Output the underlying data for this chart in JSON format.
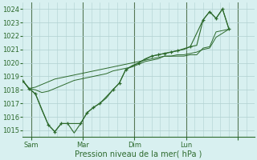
{
  "background_color": "#cce8e8",
  "plot_bg_color": "#d8f0f0",
  "grid_color": "#b0d0d0",
  "line_color": "#2d6a2d",
  "xlabel": "Pression niveau de la mer( hPa )",
  "ylim": [
    1014.5,
    1024.5
  ],
  "yticks": [
    1015,
    1016,
    1017,
    1018,
    1019,
    1020,
    1021,
    1022,
    1023,
    1024
  ],
  "xlim": [
    0,
    216
  ],
  "x_day_ticks": [
    8,
    56,
    104,
    152,
    200
  ],
  "x_day_labels": [
    "Sam",
    "Mar",
    "Dim",
    "Lun",
    ""
  ],
  "series1_x": [
    0,
    6,
    12,
    18,
    24,
    30,
    36,
    42,
    48,
    54,
    60,
    66,
    72,
    78,
    84,
    90,
    96,
    102,
    108,
    114,
    120,
    126,
    132,
    138,
    144,
    150,
    156,
    162,
    168,
    174,
    180,
    186,
    192
  ],
  "series1_y": [
    1018.7,
    1018.1,
    1017.7,
    1016.5,
    1015.4,
    1014.9,
    1015.5,
    1015.5,
    1014.8,
    1015.5,
    1016.3,
    1016.7,
    1017.0,
    1017.4,
    1018.0,
    1018.5,
    1019.5,
    1019.8,
    1020.0,
    1020.3,
    1020.5,
    1020.6,
    1020.7,
    1020.8,
    1020.9,
    1021.0,
    1021.2,
    1021.3,
    1023.2,
    1023.8,
    1023.3,
    1024.0,
    1022.5
  ],
  "series2_x": [
    0,
    6,
    12,
    18,
    24,
    30,
    36,
    42,
    48,
    54,
    60,
    66,
    72,
    78,
    84,
    90,
    96,
    102,
    108,
    114,
    120,
    126,
    132,
    138,
    144,
    150,
    156,
    162,
    168,
    174,
    180,
    186,
    192
  ],
  "series2_y": [
    1018.7,
    1018.1,
    1018.2,
    1018.4,
    1018.6,
    1018.8,
    1018.9,
    1019.0,
    1019.1,
    1019.2,
    1019.3,
    1019.4,
    1019.5,
    1019.6,
    1019.7,
    1019.8,
    1019.9,
    1020.0,
    1020.1,
    1020.2,
    1020.3,
    1020.4,
    1020.5,
    1020.5,
    1020.5,
    1020.5,
    1020.6,
    1020.6,
    1021.1,
    1021.2,
    1022.3,
    1022.4,
    1022.5
  ],
  "series3_x": [
    0,
    6,
    12,
    18,
    24,
    30,
    36,
    42,
    48,
    54,
    60,
    66,
    72,
    78,
    84,
    90,
    96,
    102,
    108,
    114,
    120,
    126,
    132,
    138,
    144,
    150,
    156,
    162,
    168,
    174,
    180,
    186,
    192
  ],
  "series3_y": [
    1018.7,
    1018.1,
    1018.0,
    1017.8,
    1017.9,
    1018.1,
    1018.3,
    1018.5,
    1018.7,
    1018.8,
    1018.9,
    1019.0,
    1019.1,
    1019.2,
    1019.4,
    1019.5,
    1019.6,
    1019.7,
    1019.9,
    1020.1,
    1020.2,
    1020.3,
    1020.5,
    1020.5,
    1020.6,
    1020.6,
    1020.7,
    1020.8,
    1021.0,
    1021.1,
    1021.9,
    1022.2,
    1022.5
  ],
  "markers_x": [
    0,
    6,
    12,
    24,
    30,
    36,
    42,
    54,
    60,
    66,
    72,
    84,
    90,
    96,
    108,
    120,
    126,
    132,
    138,
    144,
    156,
    168,
    174,
    180,
    186,
    192
  ],
  "markers_y": [
    1018.7,
    1018.1,
    1017.7,
    1015.4,
    1014.9,
    1015.5,
    1015.5,
    1015.5,
    1016.3,
    1016.7,
    1017.0,
    1018.0,
    1018.5,
    1019.5,
    1020.0,
    1020.5,
    1020.6,
    1020.7,
    1020.8,
    1020.9,
    1021.2,
    1023.2,
    1023.8,
    1023.3,
    1024.0,
    1022.5
  ],
  "vline_x": [
    8,
    56,
    104,
    152,
    200
  ],
  "vline_color": "#557755",
  "xlabel_fontsize": 7,
  "ytick_fontsize": 6,
  "xtick_fontsize": 6
}
